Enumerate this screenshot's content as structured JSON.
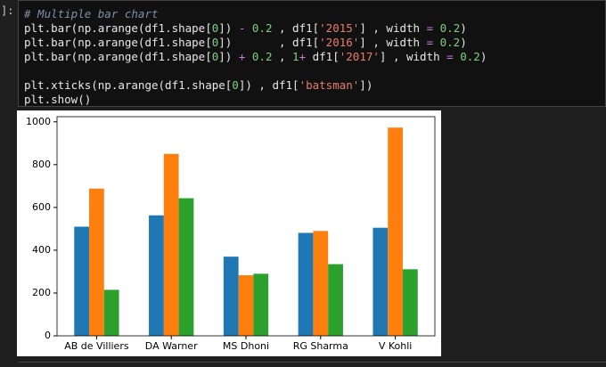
{
  "prompt": "]:",
  "code": {
    "lines": [
      "# Multiple bar chart",
      "plt.bar(np.arange(df1.shape[0]) - 0.2 , df1['2015'] , width = 0.2)",
      "plt.bar(np.arange(df1.shape[0])       , df1['2016'] , width = 0.2)",
      "plt.bar(np.arange(df1.shape[0]) + 0.2 , 1+ df1['2017'] , width = 0.2)",
      "plt.xticks(np.arange(df1.shape[0]) , df1['batsman'])",
      "plt.show()"
    ]
  },
  "chart_data": {
    "type": "bar",
    "categories": [
      "AB de Villiers",
      "DA Warner",
      "MS Dhoni",
      "RG Sharma",
      "V Kohli"
    ],
    "series": [
      {
        "color": "#1f77b4",
        "values": [
          510,
          563,
          370,
          481,
          505
        ]
      },
      {
        "color": "#ff7f0e",
        "values": [
          688,
          850,
          283,
          490,
          973
        ]
      },
      {
        "color": "#2ca02c",
        "values": [
          215,
          643,
          290,
          335,
          311
        ]
      }
    ],
    "ylim": [
      0,
      1024
    ],
    "yticks": [
      0,
      200,
      400,
      600,
      800,
      1000
    ]
  }
}
